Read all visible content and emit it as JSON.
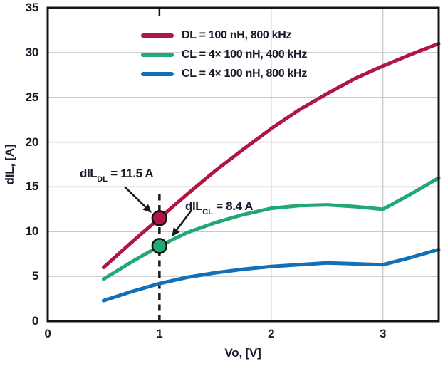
{
  "chart_data": {
    "type": "line",
    "title": "",
    "xlabel": "Vo, [V]",
    "ylabel": "dIL, [A]",
    "xlim": [
      0,
      3.5
    ],
    "ylim": [
      0,
      35
    ],
    "xticks": [
      0,
      1,
      2,
      3
    ],
    "yticks": [
      0,
      5,
      10,
      15,
      20,
      25,
      30,
      35
    ],
    "grid": true,
    "legend_position": "top-center-inside",
    "x": [
      0.5,
      0.75,
      1,
      1.25,
      1.5,
      1.75,
      2,
      2.25,
      2.5,
      2.75,
      3,
      3.25,
      3.5
    ],
    "series": [
      {
        "name": "DL = 100 nH, 800 kHz",
        "color": "#b11642",
        "values": [
          6.0,
          8.8,
          11.5,
          14.2,
          16.8,
          19.2,
          21.5,
          23.6,
          25.4,
          27.1,
          28.5,
          29.8,
          31.0
        ]
      },
      {
        "name": "CL = 4× 100 nH, 400 kHz",
        "color": "#22a873",
        "values": [
          4.7,
          6.6,
          8.4,
          9.9,
          11.0,
          11.9,
          12.6,
          12.9,
          13.0,
          12.8,
          12.5,
          14.2,
          16.0
        ]
      },
      {
        "name": "CL = 4× 100 nH, 800 kHz",
        "color": "#1170b8",
        "values": [
          2.3,
          3.3,
          4.2,
          4.9,
          5.4,
          5.8,
          6.1,
          6.3,
          6.5,
          6.4,
          6.3,
          7.1,
          8.0
        ]
      }
    ],
    "markers": [
      {
        "x": 1,
        "y": 11.5,
        "color": "#b11642"
      },
      {
        "x": 1,
        "y": 8.4,
        "color": "#22a873"
      }
    ],
    "dashed_vline": {
      "x": 1,
      "y_from": 0,
      "y_to": 14.2
    },
    "top_ticks": [
      1
    ],
    "arrows": [
      {
        "from_x": 0.69,
        "from_y": 15.0,
        "to_x": 0.93,
        "to_y": 12.1
      },
      {
        "from_x": 1.29,
        "from_y": 12.45,
        "to_x": 1.11,
        "to_y": 9.45
      }
    ],
    "annotations": [
      {
        "prefix": "dIL",
        "sub": "DL",
        "rest": " = 11.5 A"
      },
      {
        "prefix": "dIL",
        "sub": "CL",
        "rest": " = 8.4 A"
      }
    ]
  },
  "colors": {
    "background": "#ffffff",
    "border": "#141414",
    "grid": "#c9c9c9",
    "text": "#1a1a2b",
    "annotation_line": "#1a1a1a"
  }
}
